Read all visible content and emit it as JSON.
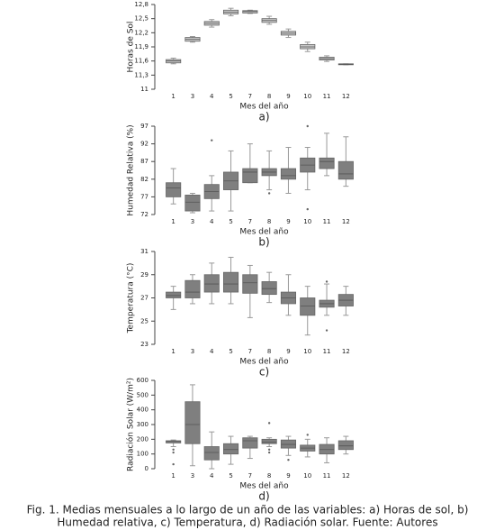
{
  "chart_data": [
    {
      "type": "box",
      "panel_label": "a)",
      "ylabel": "Horas de Sol",
      "xlabel": "Mes del año",
      "color": "#c8c8c8",
      "categories": [
        "1",
        "3",
        "4",
        "5",
        "7",
        "8",
        "9",
        "10",
        "11",
        "12"
      ],
      "min": [
        11.54,
        12.0,
        12.32,
        12.56,
        12.61,
        12.38,
        12.1,
        11.8,
        11.59,
        11.52
      ],
      "q1": [
        11.56,
        12.02,
        12.36,
        12.6,
        12.62,
        12.42,
        12.15,
        11.86,
        11.62,
        11.52
      ],
      "median": [
        11.6,
        12.06,
        12.4,
        12.64,
        12.65,
        12.46,
        12.19,
        11.9,
        11.65,
        11.53
      ],
      "q3": [
        11.63,
        12.1,
        12.44,
        12.68,
        12.67,
        12.5,
        12.23,
        11.95,
        11.68,
        11.54
      ],
      "max": [
        11.66,
        12.12,
        12.48,
        12.72,
        12.68,
        12.55,
        12.28,
        12.0,
        11.71,
        11.54
      ],
      "ylim": [
        11,
        12.8
      ],
      "yticks": [
        11,
        {
          "value": 11.3,
          "label": "11,3"
        },
        {
          "value": 11.6,
          "label": "11,6"
        },
        {
          "value": 11.9,
          "label": "11,9"
        },
        {
          "value": 12.2,
          "label": "12,2"
        },
        {
          "value": 12.5,
          "label": "12,5"
        },
        {
          "value": 12.8,
          "label": "12,8"
        }
      ]
    },
    {
      "type": "box",
      "panel_label": "b)",
      "ylabel": "Humedad Relativa (%)",
      "xlabel": "Mes del año",
      "color": "#7f7f7f",
      "categories": [
        "1",
        "3",
        "4",
        "5",
        "7",
        "8",
        "9",
        "10",
        "11",
        "12"
      ],
      "min": [
        75,
        72.5,
        73,
        73,
        81,
        79,
        78,
        79,
        83,
        80
      ],
      "q1": [
        77,
        73,
        76.5,
        79,
        81,
        83,
        82,
        84,
        85,
        82
      ],
      "median": [
        79.5,
        75.5,
        78.5,
        81.5,
        84,
        84,
        83,
        86,
        87,
        83.5
      ],
      "q3": [
        81,
        77.5,
        80.5,
        84,
        85,
        85,
        85,
        88,
        88,
        87
      ],
      "max": [
        85,
        78,
        83,
        90,
        92,
        90,
        91,
        91,
        95,
        94
      ],
      "outliers": [
        [],
        [],
        [
          93
        ],
        [],
        [],
        [
          78
        ],
        [],
        [
          97,
          73.5
        ],
        [],
        []
      ],
      "ylim": [
        72,
        97
      ],
      "yticks": [
        72,
        77,
        82,
        87,
        92,
        97
      ]
    },
    {
      "type": "box",
      "panel_label": "c)",
      "ylabel": "Temperatura (°C)",
      "xlabel": "Mes del año",
      "color": "#7f7f7f",
      "categories": [
        "1",
        "3",
        "4",
        "5",
        "7",
        "8",
        "9",
        "10",
        "11",
        "12"
      ],
      "min": [
        26,
        26.5,
        26.5,
        26.5,
        25.3,
        26.6,
        25.5,
        23.8,
        25.5,
        25.5
      ],
      "q1": [
        27,
        27,
        27.5,
        27.5,
        27.4,
        27.3,
        26.5,
        25.5,
        26.2,
        26.3
      ],
      "median": [
        27.2,
        27.5,
        28.2,
        28.2,
        28.3,
        27.8,
        27,
        26.3,
        26.5,
        26.8
      ],
      "q3": [
        27.5,
        28.5,
        29,
        29.2,
        29,
        28.4,
        27.5,
        27,
        26.8,
        27.3
      ],
      "max": [
        28,
        29,
        30,
        30.5,
        29.8,
        29.2,
        29,
        28,
        28.2,
        28
      ],
      "outliers": [
        [],
        [],
        [],
        [],
        [],
        [],
        [],
        [],
        [
          24.2,
          28.4
        ],
        []
      ],
      "ylim": [
        23,
        31
      ],
      "yticks": [
        23,
        25,
        27,
        29,
        31
      ]
    },
    {
      "type": "box",
      "panel_label": "d)",
      "ylabel": "Radiación Solar (W/m²)",
      "xlabel": "Mes del año",
      "color": "#7f7f7f",
      "categories": [
        "1",
        "3",
        "4",
        "5",
        "7",
        "8",
        "9",
        "10",
        "11",
        "12"
      ],
      "min": [
        150,
        20,
        0,
        30,
        70,
        150,
        90,
        80,
        40,
        100
      ],
      "q1": [
        175,
        170,
        60,
        100,
        140,
        170,
        140,
        120,
        100,
        130
      ],
      "median": [
        185,
        300,
        110,
        130,
        190,
        180,
        165,
        140,
        130,
        155
      ],
      "q3": [
        190,
        455,
        150,
        170,
        210,
        200,
        195,
        160,
        165,
        190
      ],
      "max": [
        195,
        570,
        250,
        220,
        220,
        210,
        220,
        200,
        210,
        220
      ],
      "outliers": [
        [
          130,
          110,
          30
        ],
        [],
        [],
        [],
        [],
        [
          310,
          130,
          110
        ],
        [
          60
        ],
        [
          230
        ],
        [],
        []
      ],
      "ylim": [
        0,
        600
      ],
      "yticks": [
        0,
        100,
        200,
        300,
        400,
        500,
        600
      ]
    }
  ],
  "caption_lines": [
    "Fig. 1. Medias mensuales a lo largo de un año de las variables: a) Horas de sol, b)",
    "Humedad relativa, c) Temperatura, d) Radiación solar. Fuente: Autores"
  ]
}
